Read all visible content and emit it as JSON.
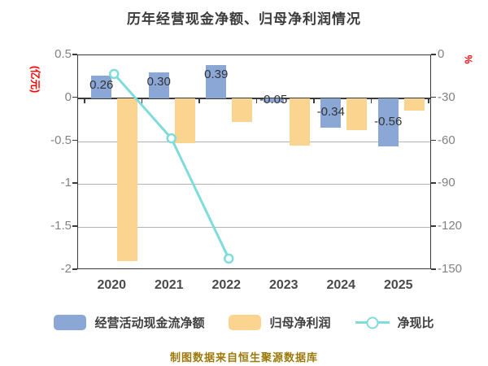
{
  "title": "历年经营现金净额、归母净利润情况",
  "footer": "制图数据来自恒生聚源数据库",
  "colors": {
    "cashflow_bar": "#8ba7d6",
    "profit_bar": "#fbd48f",
    "ratio_line": "#7edcdb",
    "ratio_marker_fill": "#ffffff",
    "axis_unit_red": "#fe0000",
    "title_text": "#3c3c3c",
    "footer_text": "#9c7a0a",
    "grid": "#b3b3b3",
    "axis_line": "#3a3a3a"
  },
  "chart_data": {
    "type": "bar+line",
    "categories": [
      "2020",
      "2021",
      "2022",
      "2023",
      "2024",
      "2025"
    ],
    "series": [
      {
        "name": "经营活动现金流净额",
        "type": "bar",
        "axis": "left",
        "values": [
          0.26,
          0.3,
          0.39,
          -0.05,
          -0.34,
          -0.56
        ],
        "labels": [
          "0.26",
          "0.30",
          "0.39",
          "-0.05",
          "-0.34",
          "-0.56"
        ]
      },
      {
        "name": "归母净利润",
        "type": "bar",
        "axis": "left",
        "values": [
          -1.9,
          -0.52,
          -0.28,
          -0.55,
          -0.37,
          -0.14
        ],
        "labels": []
      },
      {
        "name": "净现比",
        "type": "line",
        "axis": "right",
        "values": [
          -13,
          -58,
          -142,
          null,
          null,
          null
        ]
      }
    ],
    "left_axis": {
      "label": "(亿元)",
      "ticks": [
        "0.5",
        "0",
        "-0.5",
        "-1",
        "-1.5",
        "-2"
      ],
      "max": 0.5,
      "min": -2
    },
    "right_axis": {
      "label": "%",
      "ticks": [
        "0",
        "-30",
        "-60",
        "-90",
        "-120",
        "-150"
      ],
      "max": 0,
      "min": -150
    },
    "grid": "horizontal gridlines, x axis line drawn on zero"
  }
}
